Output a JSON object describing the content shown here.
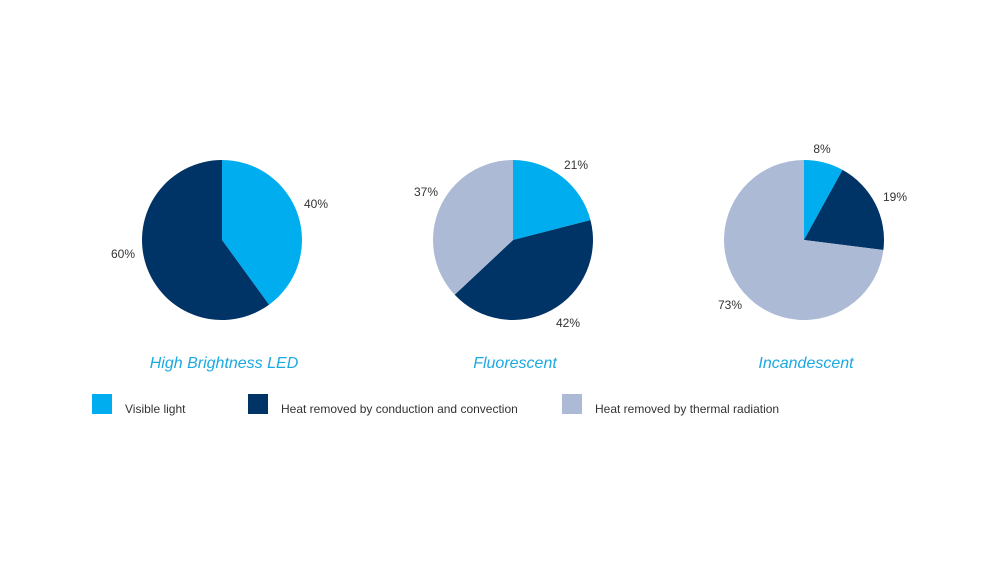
{
  "chart_data": [
    {
      "type": "pie",
      "title": "High Brightness LED",
      "slices": [
        {
          "label": "Visible light",
          "value": 40,
          "value_label": "40%",
          "color": "#00adef"
        },
        {
          "label": "Heat removed by conduction and convection",
          "value": 60,
          "value_label": "60%",
          "color": "#003366"
        }
      ]
    },
    {
      "type": "pie",
      "title": "Fluorescent",
      "slices": [
        {
          "label": "Visible light",
          "value": 21,
          "value_label": "21%",
          "color": "#00adef"
        },
        {
          "label": "Heat removed by conduction and convection",
          "value": 42,
          "value_label": "42%",
          "color": "#003366"
        },
        {
          "label": "Heat removed by thermal  radiation",
          "value": 37,
          "value_label": "37%",
          "color": "#adbad6"
        }
      ]
    },
    {
      "type": "pie",
      "title": "Incandescent",
      "slices": [
        {
          "label": "Visible light",
          "value": 8,
          "value_label": "8%",
          "color": "#00adef"
        },
        {
          "label": "Heat removed by conduction and convection",
          "value": 19,
          "value_label": "19%",
          "color": "#003366"
        },
        {
          "label": "Heat removed by thermal  radiation",
          "value": 73,
          "value_label": "73%",
          "color": "#adbad6"
        }
      ]
    }
  ],
  "legend": [
    {
      "label": "Visible light",
      "color": "#00adef"
    },
    {
      "label": "Heat removed by conduction and convection",
      "color": "#003366"
    },
    {
      "label": "Heat removed by thermal  radiation",
      "color": "#adbad6"
    }
  ]
}
